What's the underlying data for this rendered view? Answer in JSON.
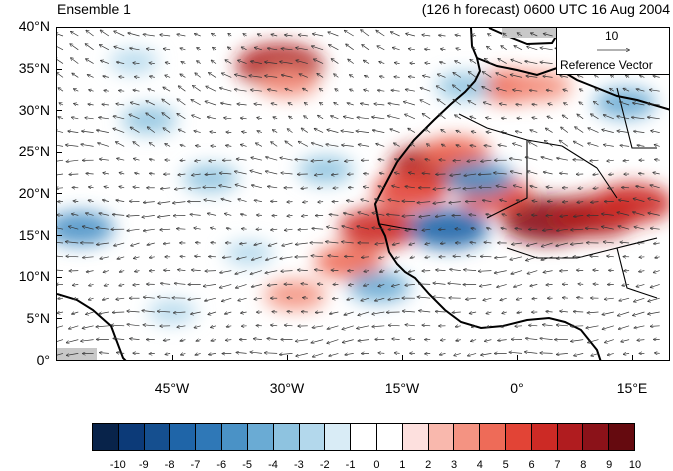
{
  "title_left": "Ensemble 1",
  "title_right": "(126 h forecast) 0600 UTC 16 Aug 2004",
  "reference_vector": {
    "value": "10",
    "label": "Reference Vector"
  },
  "y_axis_labels": [
    "40°N",
    "35°N",
    "30°N",
    "25°N",
    "20°N",
    "15°N",
    "10°N",
    "5°N",
    "0°"
  ],
  "x_axis_labels": [
    "45°W",
    "30°W",
    "15°W",
    "0°",
    "15°E"
  ],
  "colorbar": {
    "labels": [
      "-10",
      "-9",
      "-8",
      "-7",
      "-6",
      "-5",
      "-4",
      "-3",
      "-2",
      "-1",
      "0",
      "1",
      "2",
      "3",
      "4",
      "5",
      "6",
      "7",
      "8",
      "9",
      "10"
    ],
    "colors": [
      "#08234a",
      "#0c3a78",
      "#154f8f",
      "#1f65a8",
      "#2f78b7",
      "#4a92c6",
      "#6aabd4",
      "#8ec3e0",
      "#b3d8ec",
      "#d9ecf6",
      "#ffffff",
      "#ffffff",
      "#fde0de",
      "#f9b8ad",
      "#f49382",
      "#ee6b58",
      "#e24436",
      "#cc2a25",
      "#b01c1f",
      "#8b1219",
      "#650a0f"
    ]
  },
  "map": {
    "lon_range": [
      -60,
      20
    ],
    "lat_range": [
      0,
      40
    ],
    "shading": [
      {
        "lon": -31,
        "lat": 35.5,
        "value": 8
      },
      {
        "lon": -30,
        "lat": 33.5,
        "value": 4
      },
      {
        "lon": -11,
        "lat": 23.5,
        "value": 8
      },
      {
        "lon": -14,
        "lat": 20.5,
        "value": 6
      },
      {
        "lon": -8,
        "lat": 25.0,
        "value": 5
      },
      {
        "lon": 4,
        "lat": 17.0,
        "value": 9
      },
      {
        "lon": 10,
        "lat": 17.5,
        "value": 8
      },
      {
        "lon": 15,
        "lat": 19.0,
        "value": 7
      },
      {
        "lon": -3,
        "lat": 20.0,
        "value": 6
      },
      {
        "lon": -18,
        "lat": 16.0,
        "value": 7
      },
      {
        "lon": -22,
        "lat": 12.0,
        "value": 5
      },
      {
        "lon": -29,
        "lat": 8.0,
        "value": 4
      },
      {
        "lon": -1,
        "lat": 33.0,
        "value": 5
      },
      {
        "lon": 3,
        "lat": 33.0,
        "value": 4
      },
      {
        "lon": -9,
        "lat": 16.0,
        "value": -7
      },
      {
        "lon": -5,
        "lat": 22.0,
        "value": -5
      },
      {
        "lon": -57,
        "lat": 16.0,
        "value": -5
      },
      {
        "lon": -18,
        "lat": 9.0,
        "value": -4
      },
      {
        "lon": -48,
        "lat": 29.0,
        "value": -3
      },
      {
        "lon": -40,
        "lat": 22.0,
        "value": -3
      },
      {
        "lon": -25,
        "lat": 23.0,
        "value": -3
      },
      {
        "lon": 14,
        "lat": 31.0,
        "value": -4
      },
      {
        "lon": -7,
        "lat": 33.0,
        "value": -3
      },
      {
        "lon": -35,
        "lat": 13.0,
        "value": -2
      },
      {
        "lon": -45,
        "lat": 6.0,
        "value": -2
      },
      {
        "lon": -50,
        "lat": 36.0,
        "value": -2
      }
    ]
  }
}
